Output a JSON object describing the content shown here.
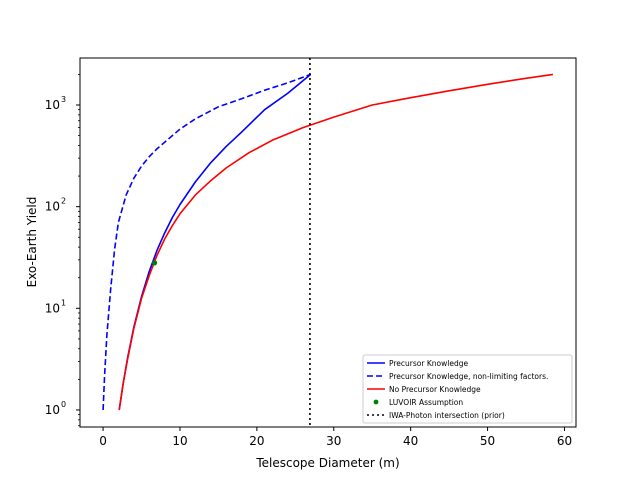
{
  "chart_data": {
    "type": "line",
    "xlabel": "Telescope Diameter (m)",
    "ylabel": "Exo-Earth Yield",
    "xlim": [
      -3,
      61.5
    ],
    "ylim": [
      0.68,
      2900
    ],
    "yscale": "log",
    "grid": false,
    "legend_position": "lower-right",
    "xticks": [
      0,
      10,
      20,
      30,
      40,
      50,
      60
    ],
    "xtick_labels": [
      "0",
      "10",
      "20",
      "30",
      "40",
      "50",
      "60"
    ],
    "yticks": [
      1,
      10,
      100,
      1000
    ],
    "ytick_labels": [
      "10",
      "10",
      "10",
      "10"
    ],
    "ytick_exponents": [
      "0",
      "1",
      "2",
      "3"
    ],
    "series": [
      {
        "name": "Precursor Knowledge",
        "color": "#0000ff",
        "style": "solid",
        "x": [
          2.1,
          2.6,
          3.2,
          4.0,
          5.0,
          6.0,
          7.0,
          8.0,
          9.0,
          10.0,
          12.0,
          14.0,
          16.0,
          18.0,
          21.0,
          24.0,
          27.0
        ],
        "y": [
          1,
          1.8,
          3.3,
          6.5,
          13,
          23,
          37,
          55,
          78,
          105,
          175,
          270,
          390,
          540,
          900,
          1300,
          2000
        ]
      },
      {
        "name": "Precursor Knowledge, non-limiting factors.",
        "color": "#0000ff",
        "style": "dashed",
        "x": [
          0.0,
          0.2,
          0.5,
          1.0,
          1.5,
          2.0,
          3.0,
          4.0,
          5.0,
          6.0,
          7.0,
          8.0,
          10.0,
          12.0,
          15.0,
          18.0,
          21.0,
          24.0,
          27.0
        ],
        "y": [
          1,
          2.2,
          5.5,
          16,
          38,
          70,
          130,
          190,
          250,
          310,
          370,
          430,
          580,
          730,
          960,
          1150,
          1400,
          1650,
          2000
        ]
      },
      {
        "name": "No Precursor Knowledge",
        "color": "#ff0000",
        "style": "solid",
        "x": [
          2.1,
          2.6,
          3.2,
          4.0,
          5.0,
          6.0,
          7.0,
          8.0,
          9.0,
          10.0,
          12.0,
          14.0,
          16.0,
          19.0,
          22.0,
          26.0,
          30.0,
          35.0,
          40.0,
          45.0,
          50.0,
          55.0,
          58.5
        ],
        "y": [
          1,
          1.8,
          3.2,
          6.3,
          12.5,
          21,
          33,
          48,
          65,
          85,
          130,
          180,
          240,
          340,
          450,
          600,
          760,
          1000,
          1180,
          1380,
          1600,
          1830,
          2000
        ]
      }
    ],
    "points": [
      {
        "name": "LUVOIR Assumption",
        "color": "#008000",
        "x": [
          6.7
        ],
        "y": [
          28
        ]
      }
    ],
    "vlines": [
      {
        "name": "IWA-Photon intersection (prior)",
        "color": "#000000",
        "style": "dotted",
        "x": 26.9
      }
    ]
  }
}
